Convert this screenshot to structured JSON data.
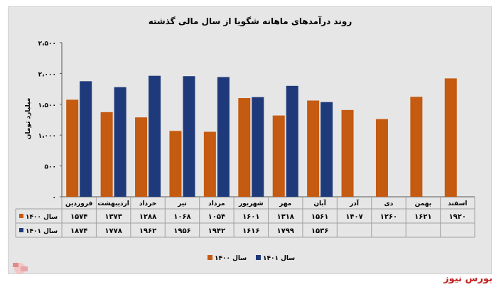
{
  "chart_data": {
    "type": "bar",
    "title": "روند درآمدهای ماهانه شگویا از سال مالی گذشته",
    "ylabel": "میلیارد تومان",
    "ylim": [
      0,
      2500
    ],
    "ytick_labels": [
      "۰",
      "۵۰۰",
      "۱،۰۰۰",
      "۱،۵۰۰",
      "۲،۰۰۰",
      "۲،۵۰۰"
    ],
    "categories": [
      "فروردین",
      "اردیبهشت",
      "خرداد",
      "تیر",
      "مرداد",
      "شهریور",
      "مهر",
      "آبان",
      "آذر",
      "دی",
      "بهمن",
      "اسفند"
    ],
    "series": [
      {
        "name": "سال ۱۴۰۰",
        "color": "#c55a11",
        "values": [
          1574,
          1373,
          1288,
          1068,
          1054,
          1601,
          1318,
          1561,
          1407,
          1260,
          1621,
          1920
        ],
        "labels": [
          "۱۵۷۴",
          "۱۳۷۳",
          "۱۲۸۸",
          "۱۰۶۸",
          "۱۰۵۴",
          "۱۶۰۱",
          "۱۳۱۸",
          "۱۵۶۱",
          "۱۴۰۷",
          "۱۲۶۰",
          "۱۶۲۱",
          "۱۹۲۰"
        ]
      },
      {
        "name": "سال ۱۴۰۱",
        "color": "#1f3a7a",
        "values": [
          1874,
          1778,
          1962,
          1956,
          1942,
          1616,
          1799,
          1536,
          null,
          null,
          null,
          null
        ],
        "labels": [
          "۱۸۷۴",
          "۱۷۷۸",
          "۱۹۶۲",
          "۱۹۵۶",
          "۱۹۴۲",
          "۱۶۱۶",
          "۱۷۹۹",
          "۱۵۳۶",
          "",
          "",
          "",
          ""
        ]
      }
    ],
    "grid": false,
    "legend": "bottom"
  },
  "brand": "بورس نیوز",
  "colors": {
    "accent": "#c0201d",
    "background": "#e6e6e6"
  }
}
